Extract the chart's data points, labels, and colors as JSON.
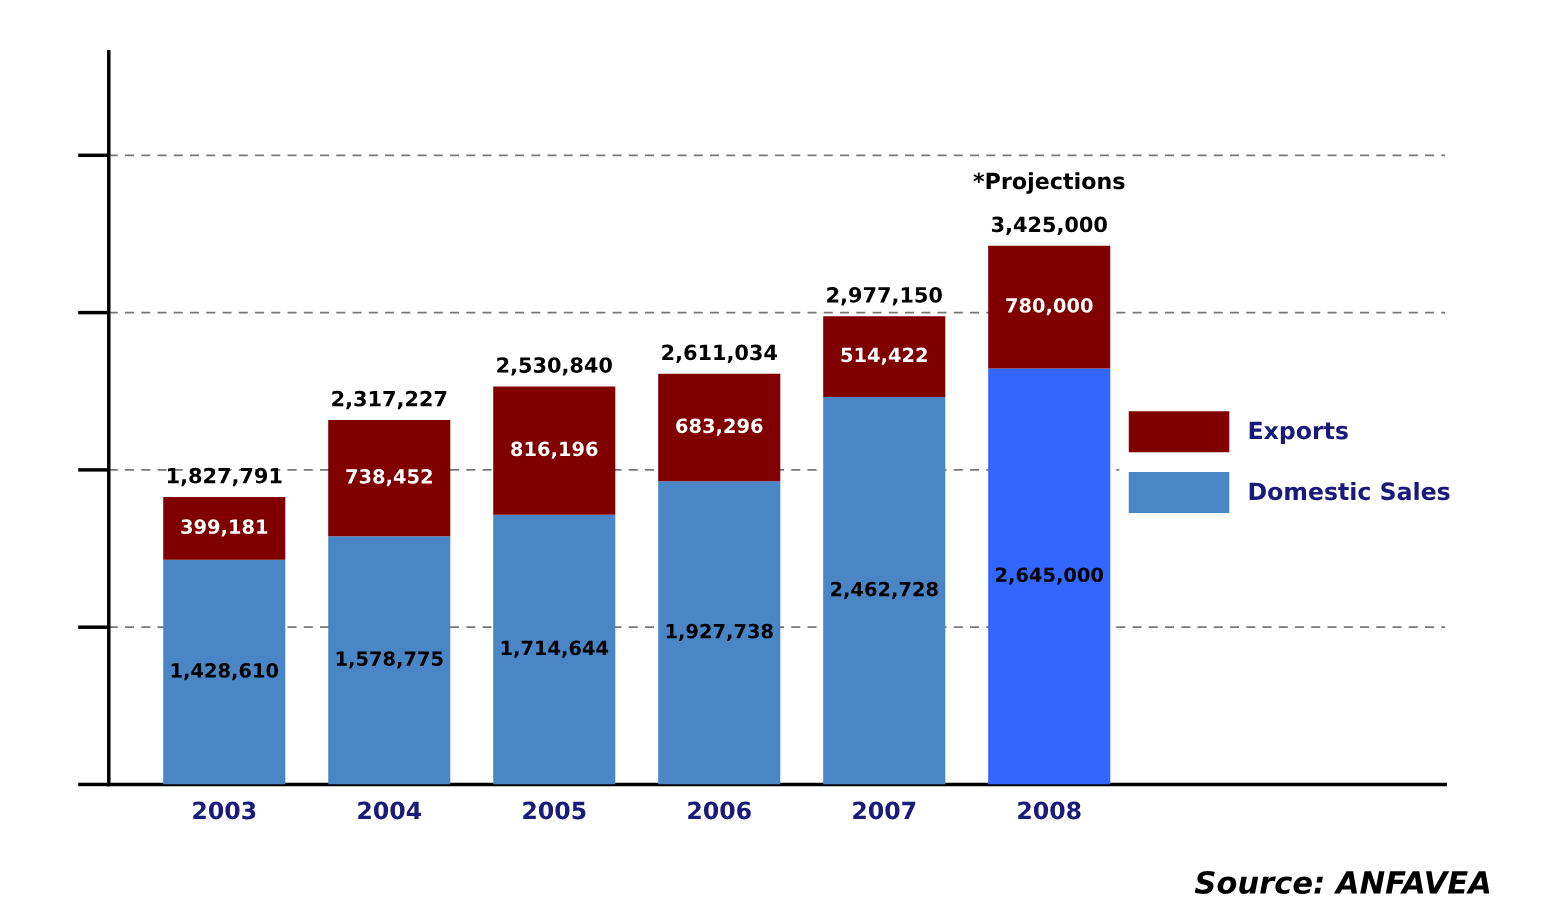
{
  "chart_data": {
    "type": "bar",
    "stacked": true,
    "categories": [
      "2003",
      "2004",
      "2005",
      "2006",
      "2007",
      "2008"
    ],
    "series": [
      {
        "name": "Domestic Sales",
        "color": "#4a86c5",
        "colors": [
          "#4a86c5",
          "#4a86c5",
          "#4a86c5",
          "#4a86c5",
          "#4a86c5",
          "#3366ff"
        ],
        "values": [
          1428610,
          1578775,
          1714644,
          1927738,
          2462728,
          2645000
        ],
        "value_labels": [
          "1,428,610",
          "1,578,775",
          "1,714,644",
          "1,927,738",
          "2,462,728",
          "2,645,000"
        ]
      },
      {
        "name": "Exports",
        "color": "#800000",
        "values": [
          399181,
          738452,
          816196,
          683296,
          514422,
          780000
        ],
        "value_labels": [
          "399,181",
          "738,452",
          "816,196",
          "683,296",
          "514,422",
          "780,000"
        ]
      }
    ],
    "totals": [
      "1,827,791",
      "2,317,227",
      "2,530,840",
      "2,611,034",
      "2,977,150",
      "3,425,000"
    ],
    "annotations": [
      {
        "text": "*Projections",
        "x": "2008",
        "y": 3425000
      },
      "Source: ANFAVEA"
    ],
    "tick_labels": "x",
    "grid": "y",
    "legend": "right"
  }
}
